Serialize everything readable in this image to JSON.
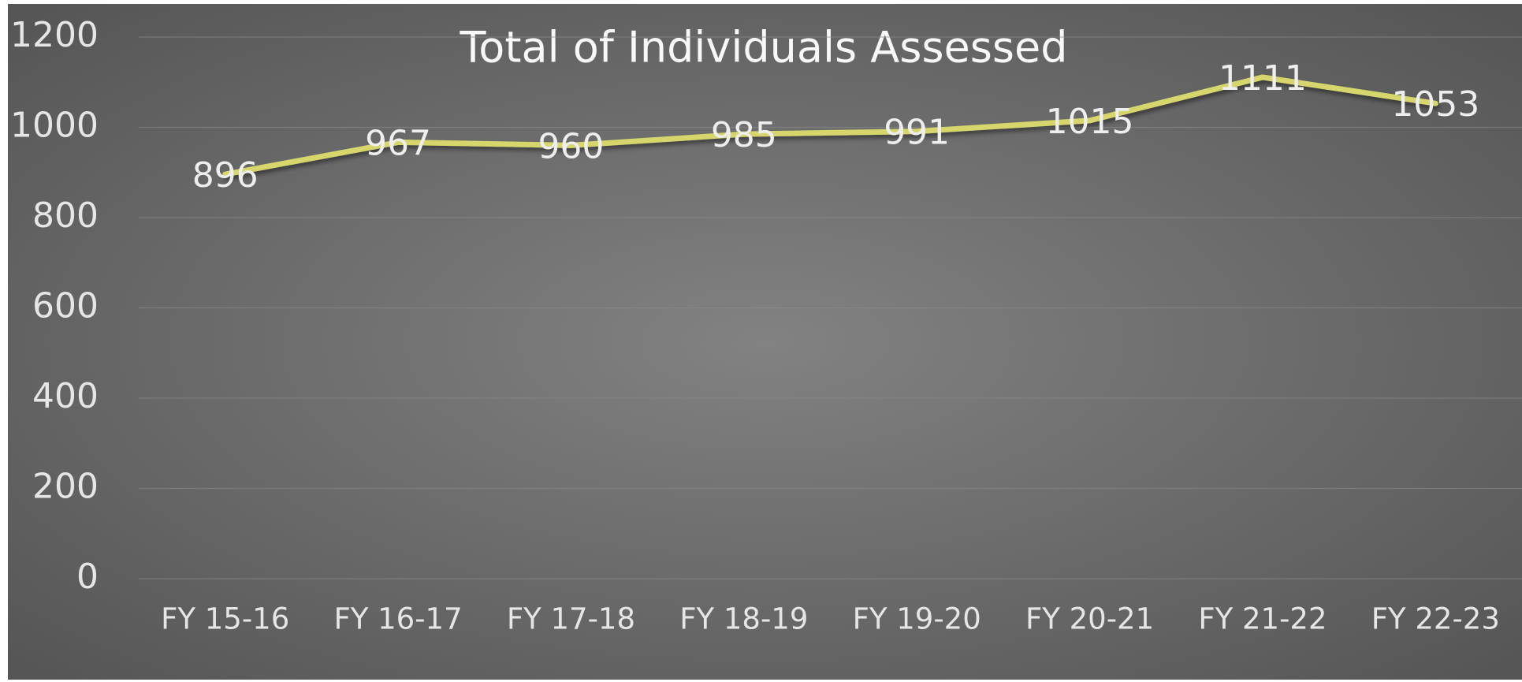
{
  "chart_data": {
    "type": "line",
    "title": "Total of Individuals Assessed",
    "categories": [
      "FY 15-16",
      "FY 16-17",
      "FY 17-18",
      "FY 18-19",
      "FY 19-20",
      "FY 20-21",
      "FY 21-22",
      "FY 22-23"
    ],
    "values": [
      896,
      967,
      960,
      985,
      991,
      1015,
      1111,
      1053
    ],
    "color": "#d6d66c",
    "ylim": [
      0,
      1200
    ],
    "yticks": [
      0,
      200,
      400,
      600,
      800,
      1000,
      1200
    ],
    "grid": true
  }
}
